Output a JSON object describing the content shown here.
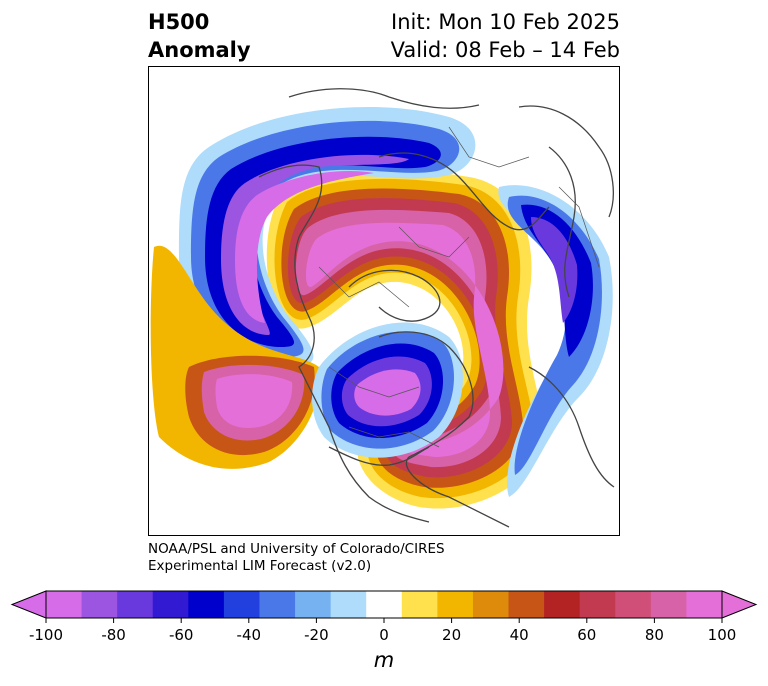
{
  "title": {
    "left_line1": "H500",
    "left_line2": "Anomaly",
    "right_line1": "Init: Mon 10 Feb 2025",
    "right_line2": "Valid: 08 Feb – 14 Feb"
  },
  "credits": {
    "line1": "NOAA/PSL and University of Colorado/CIRES",
    "line2": "Experimental LIM Forecast (v2.0)"
  },
  "map": {
    "projection": "polar-stereographic",
    "features": [
      "coastlines",
      "country-borders",
      "state-province-borders"
    ],
    "field": "500 hPa geopotential height anomaly"
  },
  "colorbar": {
    "unit": "m",
    "ticks": [
      "-100",
      "-80",
      "-60",
      "-40",
      "-20",
      "0",
      "20",
      "40",
      "60",
      "80",
      "100"
    ],
    "levels": [
      -100,
      -90,
      -80,
      -70,
      -60,
      -50,
      -40,
      -30,
      -20,
      -10,
      10,
      20,
      30,
      40,
      50,
      60,
      70,
      80,
      90,
      100
    ],
    "colors": [
      "#d66ce8",
      "#9b55e0",
      "#6a39dd",
      "#3219d2",
      "#0000cc",
      "#2240dd",
      "#4a78e8",
      "#76b1f2",
      "#afdcfa",
      "#ffffff",
      "#ffe14d",
      "#f2b600",
      "#de8a0a",
      "#c75515",
      "#b32323",
      "#c23a50",
      "#cf4f78",
      "#d862a8",
      "#e46fd8"
    ],
    "extend": "both"
  }
}
